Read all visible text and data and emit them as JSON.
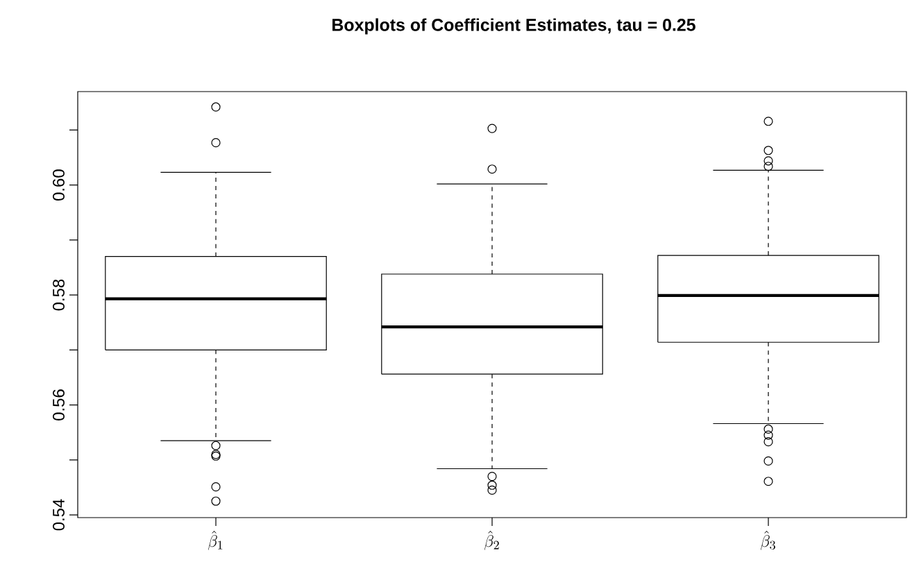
{
  "chart_data": {
    "type": "box",
    "title": "Boxplots of Coefficient Estimates, tau = 0.25",
    "categories": [
      "\\hat{\\beta}_1",
      "\\hat{\\beta}_2",
      "\\hat{\\beta}_3"
    ],
    "boxes": [
      {
        "low": 0.5535,
        "q1": 0.57,
        "median": 0.5793,
        "q3": 0.587,
        "high": 0.6023,
        "outliers": [
          0.6142,
          0.6077,
          0.5526,
          0.551,
          0.5507,
          0.5451,
          0.5425
        ]
      },
      {
        "low": 0.5484,
        "q1": 0.5656,
        "median": 0.5742,
        "q3": 0.5838,
        "high": 0.6002,
        "outliers": [
          0.6103,
          0.6029,
          0.547,
          0.5454,
          0.5445
        ]
      },
      {
        "low": 0.5566,
        "q1": 0.5714,
        "median": 0.5799,
        "q3": 0.5872,
        "high": 0.6027,
        "outliers": [
          0.6116,
          0.6063,
          0.6044,
          0.6034,
          0.5556,
          0.5545,
          0.5533,
          0.5498,
          0.5461
        ]
      }
    ],
    "ylim": [
      0.5395,
      0.617
    ],
    "yticks": [
      0.54,
      {
        "value": 0.55,
        "label": null
      },
      0.56,
      {
        "value": 0.57,
        "label": null
      },
      0.58,
      {
        "value": 0.59,
        "label": null
      },
      {
        "value": 0.6,
        "label": "0.60"
      },
      {
        "value": 0.61,
        "label": null
      }
    ],
    "marker": "circle"
  }
}
